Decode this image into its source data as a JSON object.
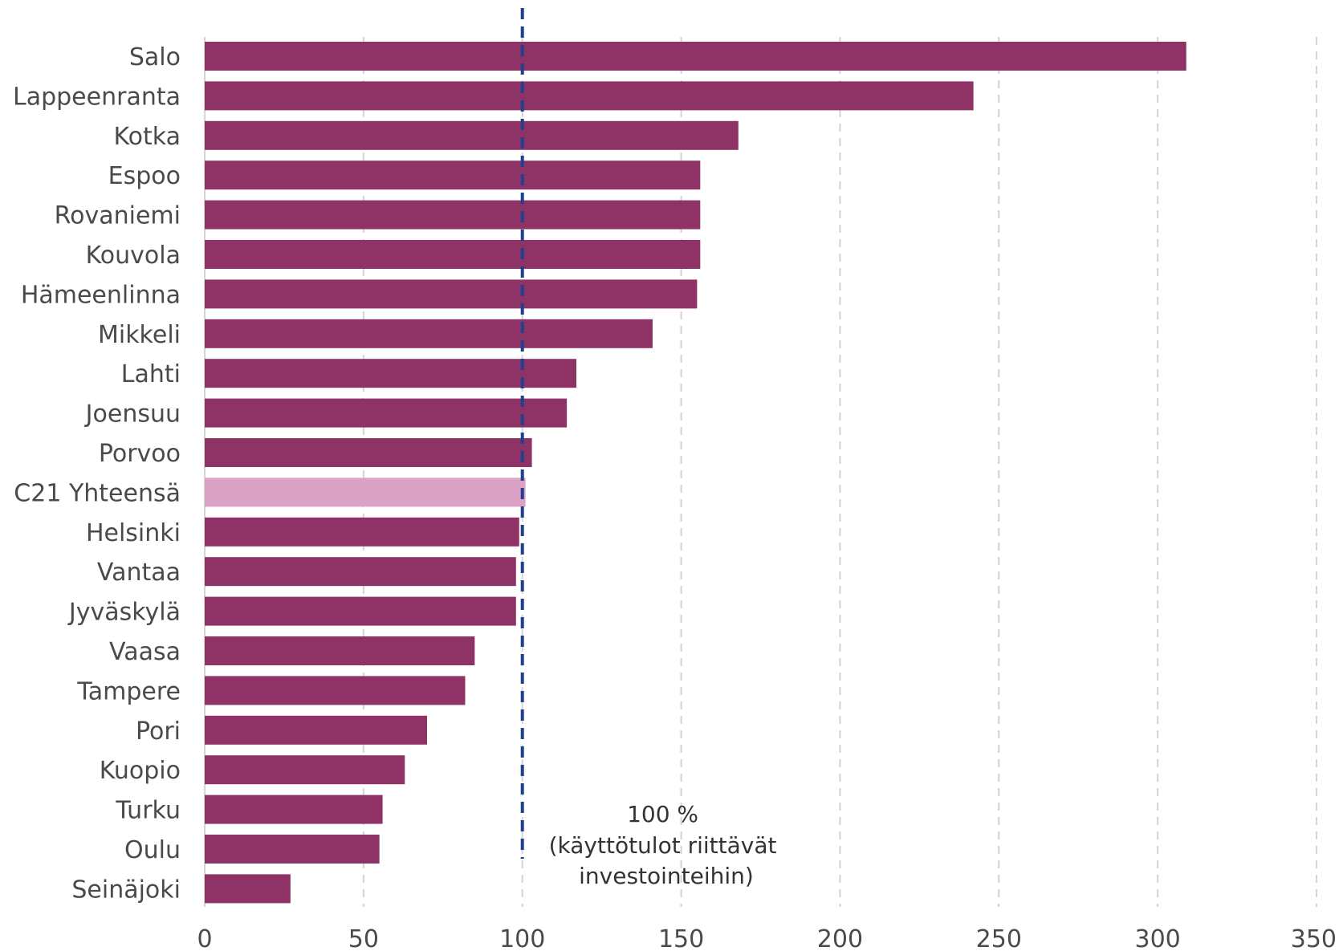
{
  "chart_data": {
    "type": "bar",
    "orientation": "horizontal",
    "categories": [
      "Salo",
      "Lappeenranta",
      "Kotka",
      "Espoo",
      "Rovaniemi",
      "Kouvola",
      "Hämeenlinna",
      "Mikkeli",
      "Lahti",
      "Joensuu",
      "Porvoo",
      "C21 Yhteensä",
      "Helsinki",
      "Vantaa",
      "Jyväskylä",
      "Vaasa",
      "Tampere",
      "Pori",
      "Kuopio",
      "Turku",
      "Oulu",
      "Seinäjoki"
    ],
    "values": [
      309,
      242,
      168,
      156,
      156,
      156,
      155,
      141,
      117,
      114,
      103,
      101,
      99,
      98,
      98,
      85,
      82,
      70,
      63,
      56,
      55,
      27
    ],
    "highlight_category": "C21 Yhteensä",
    "xlim": [
      0,
      350
    ],
    "xticks": [
      "0",
      "50",
      "100",
      "150",
      "200",
      "250",
      "300",
      "350"
    ],
    "grid": "vertical dashed",
    "reference_line": {
      "value": 100,
      "style": "dashed",
      "annotation": [
        "100 %",
        "(käyttötulot riittävät",
        "investointeihin)"
      ]
    },
    "colors": {
      "bar": "#8f3366",
      "highlight": "#dca2c5",
      "reference_line": "#1f3f8f",
      "grid": "#d4d4d4",
      "text": "#4a4a4a"
    }
  }
}
